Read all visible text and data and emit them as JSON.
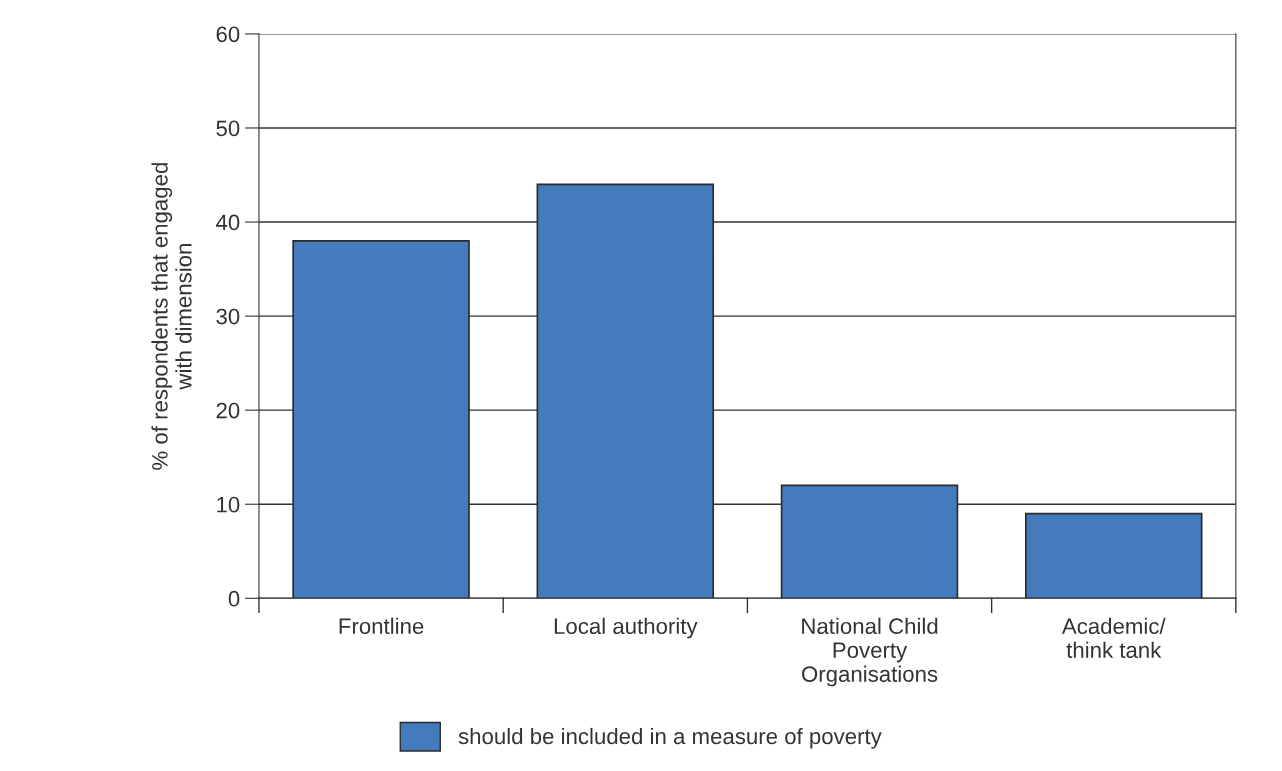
{
  "chart_data": {
    "type": "bar",
    "ylabel": "% of respondents that engaged\nwith dimension",
    "categories": [
      "Frontline",
      "Local authority",
      "National Child\nPoverty\nOrganisations",
      "Academic/\nthink tank"
    ],
    "series": [
      {
        "name": "should be included in a measure of poverty",
        "color": "#447bbd",
        "values": [
          38,
          44,
          12,
          9
        ]
      }
    ],
    "ylim": [
      0,
      60
    ],
    "yticks": [
      0,
      10,
      20,
      30,
      40,
      50,
      60
    ],
    "grid": "y",
    "legend": "bottom"
  }
}
